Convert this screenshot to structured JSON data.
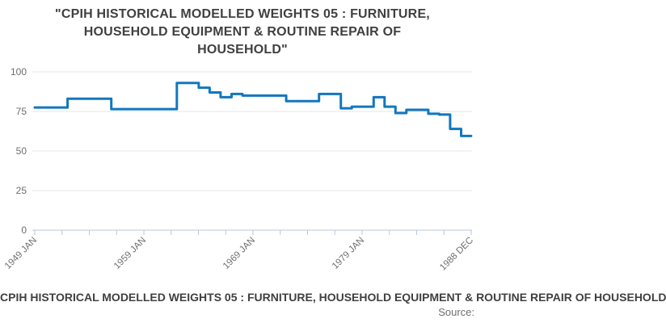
{
  "title": "\"CPIH HISTORICAL MODELLED WEIGHTS 05 : FURNITURE, HOUSEHOLD EQUIPMENT & ROUTINE REPAIR OF HOUSEHOLD\"",
  "title_lines": [
    "\"CPIH HISTORICAL MODELLED WEIGHTS 05 : FURNITURE,",
    "HOUSEHOLD EQUIPMENT & ROUTINE REPAIR OF",
    "HOUSEHOLD\""
  ],
  "footer": {
    "series_title": "CPIH HISTORICAL MODELLED WEIGHTS 05 : FURNITURE, HOUSEHOLD EQUIPMENT & ROUTINE REPAIR OF HOUSEHOLD",
    "source_label": "Source:"
  },
  "chart_data": {
    "type": "line",
    "step": "after",
    "title": "CPIH HISTORICAL MODELLED WEIGHTS 05 : FURNITURE, HOUSEHOLD EQUIPMENT & ROUTINE REPAIR OF HOUSEHOLD",
    "grid": true,
    "legend": "none",
    "x_axis": {
      "range": [
        1949,
        1989
      ],
      "tick_labels": [
        "1949 JAN",
        "1959 JAN",
        "1969 JAN",
        "1979 JAN",
        "1988 DEC"
      ],
      "minor_tick_count": 17
    },
    "y_axis": {
      "range": [
        0,
        100
      ],
      "ticks": [
        0,
        25,
        50,
        75,
        100
      ],
      "tick_labels": [
        "0",
        "25",
        "50",
        "75",
        "100"
      ]
    },
    "series": [
      {
        "color": "#1277bd",
        "points": [
          [
            1949,
            77.5
          ],
          [
            1952,
            83
          ],
          [
            1956,
            76.5
          ],
          [
            1962,
            93
          ],
          [
            1964,
            90
          ],
          [
            1965,
            87
          ],
          [
            1966,
            84
          ],
          [
            1967,
            86
          ],
          [
            1968,
            85
          ],
          [
            1972,
            81.5
          ],
          [
            1975,
            86
          ],
          [
            1977,
            77
          ],
          [
            1978,
            78
          ],
          [
            1980,
            84
          ],
          [
            1981,
            78
          ],
          [
            1982,
            74
          ],
          [
            1983,
            76
          ],
          [
            1985,
            73.5
          ],
          [
            1986,
            73
          ],
          [
            1987,
            64
          ],
          [
            1988,
            59.5
          ]
        ],
        "end_x": 1988.92
      }
    ]
  },
  "colors": {
    "line": "#1277bd",
    "title_text": "#3f4042",
    "axis_labels": "#6e6e6e",
    "gridline": "#e4e4e4",
    "axis_line": "#b9c7da"
  }
}
